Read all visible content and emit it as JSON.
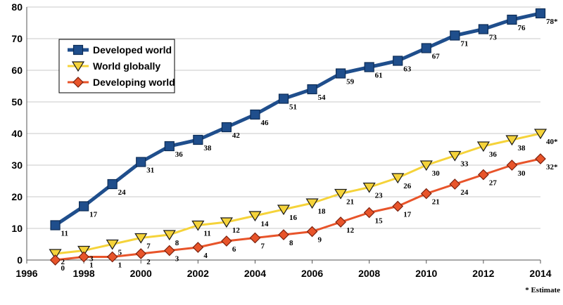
{
  "chart_data": {
    "type": "line",
    "title": "",
    "xlabel": "",
    "ylabel": "",
    "xlim": [
      1996,
      2014
    ],
    "ylim": [
      0,
      80
    ],
    "x_ticks": [
      "1996",
      "1998",
      "2000",
      "2002",
      "2004",
      "2006",
      "2008",
      "2010",
      "2012",
      "2014"
    ],
    "y_ticks": [
      "0",
      "10",
      "20",
      "30",
      "40",
      "50",
      "60",
      "70",
      "80"
    ],
    "grid": "horizontal",
    "legend_position": "top-left",
    "footnote": "* Estimate",
    "series": [
      {
        "name": "Developed world",
        "color": "#1f4e8c",
        "marker": "square",
        "x": [
          1997,
          1998,
          1999,
          2000,
          2001,
          2002,
          2003,
          2004,
          2005,
          2006,
          2007,
          2008,
          2009,
          2010,
          2011,
          2012,
          2013,
          2014
        ],
        "values": [
          11,
          17,
          24,
          31,
          36,
          38,
          42,
          46,
          51,
          54,
          59,
          61,
          63,
          67,
          71,
          73,
          76,
          78
        ],
        "labels": [
          "11",
          "17",
          "24",
          "31",
          "36",
          "38",
          "42",
          "46",
          "51",
          "54",
          "59",
          "61",
          "63",
          "67",
          "71",
          "73",
          "76",
          "78*"
        ]
      },
      {
        "name": "World globally",
        "color": "#f5d33a",
        "marker": "triangle-down",
        "x": [
          1997,
          1998,
          1999,
          2000,
          2001,
          2002,
          2003,
          2004,
          2005,
          2006,
          2007,
          2008,
          2009,
          2010,
          2011,
          2012,
          2013,
          2014
        ],
        "values": [
          2,
          3,
          5,
          7,
          8,
          11,
          12,
          14,
          16,
          18,
          21,
          23,
          26,
          30,
          33,
          36,
          38,
          40
        ],
        "labels": [
          "2",
          "3",
          "5",
          "7",
          "8",
          "11",
          "12",
          "14",
          "16",
          "18",
          "21",
          "23",
          "26",
          "30",
          "33",
          "36",
          "38",
          "40*"
        ]
      },
      {
        "name": "Developing world",
        "color": "#e8542a",
        "marker": "diamond",
        "x": [
          1997,
          1998,
          1999,
          2000,
          2001,
          2002,
          2003,
          2004,
          2005,
          2006,
          2007,
          2008,
          2009,
          2010,
          2011,
          2012,
          2013,
          2014
        ],
        "values": [
          0,
          1,
          1,
          2,
          3,
          4,
          6,
          7,
          8,
          9,
          12,
          15,
          17,
          21,
          24,
          27,
          30,
          32
        ],
        "labels": [
          "0",
          "1",
          "1",
          "2",
          "3",
          "4",
          "6",
          "7",
          "8",
          "9",
          "12",
          "15",
          "17",
          "21",
          "24",
          "27",
          "30",
          "32*"
        ]
      }
    ]
  }
}
